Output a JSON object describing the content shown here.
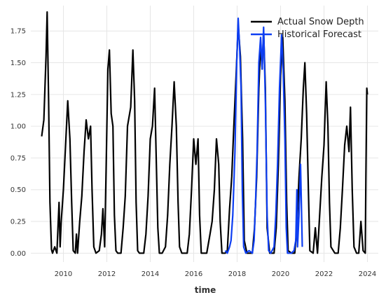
{
  "chart_data": {
    "type": "line",
    "title": "",
    "xlabel": "time",
    "ylabel": "",
    "xlim": [
      2008.5,
      2024.5
    ],
    "ylim": [
      -0.07,
      1.95
    ],
    "x_ticks": [
      2010,
      2012,
      2014,
      2016,
      2018,
      2020,
      2022,
      2024
    ],
    "x_tick_labels": [
      "2010",
      "2012",
      "2014",
      "2016",
      "2018",
      "2020",
      "2022",
      "2024"
    ],
    "y_ticks": [
      0.0,
      0.25,
      0.5,
      0.75,
      1.0,
      1.25,
      1.5,
      1.75
    ],
    "y_tick_labels": [
      "0.00",
      "0.25",
      "0.50",
      "0.75",
      "1.00",
      "1.25",
      "1.50",
      "1.75"
    ],
    "grid": true,
    "legend_position": "top-right",
    "series": [
      {
        "name": "Actual Snow Depth",
        "color": "#000000",
        "points": [
          [
            2009.0,
            0.92
          ],
          [
            2009.1,
            1.05
          ],
          [
            2009.2,
            1.55
          ],
          [
            2009.25,
            1.9
          ],
          [
            2009.32,
            1.2
          ],
          [
            2009.38,
            0.4
          ],
          [
            2009.45,
            0.03
          ],
          [
            2009.5,
            0.0
          ],
          [
            2009.6,
            0.05
          ],
          [
            2009.7,
            0.0
          ],
          [
            2009.8,
            0.4
          ],
          [
            2009.85,
            0.05
          ],
          [
            2009.9,
            0.25
          ],
          [
            2010.0,
            0.5
          ],
          [
            2010.1,
            0.85
          ],
          [
            2010.2,
            1.2
          ],
          [
            2010.3,
            0.9
          ],
          [
            2010.38,
            0.4
          ],
          [
            2010.45,
            0.02
          ],
          [
            2010.55,
            0.0
          ],
          [
            2010.6,
            0.15
          ],
          [
            2010.65,
            0.0
          ],
          [
            2010.75,
            0.25
          ],
          [
            2010.85,
            0.45
          ],
          [
            2010.95,
            0.8
          ],
          [
            2011.05,
            1.05
          ],
          [
            2011.15,
            0.9
          ],
          [
            2011.25,
            1.0
          ],
          [
            2011.32,
            0.5
          ],
          [
            2011.4,
            0.05
          ],
          [
            2011.5,
            0.0
          ],
          [
            2011.65,
            0.02
          ],
          [
            2011.75,
            0.15
          ],
          [
            2011.82,
            0.35
          ],
          [
            2011.9,
            0.05
          ],
          [
            2011.97,
            0.7
          ],
          [
            2012.05,
            1.45
          ],
          [
            2012.12,
            1.6
          ],
          [
            2012.2,
            1.1
          ],
          [
            2012.28,
            1.0
          ],
          [
            2012.35,
            0.3
          ],
          [
            2012.42,
            0.02
          ],
          [
            2012.5,
            0.0
          ],
          [
            2012.65,
            0.0
          ],
          [
            2012.75,
            0.2
          ],
          [
            2012.85,
            0.45
          ],
          [
            2012.95,
            1.0
          ],
          [
            2013.1,
            1.15
          ],
          [
            2013.2,
            1.6
          ],
          [
            2013.28,
            1.2
          ],
          [
            2013.35,
            0.4
          ],
          [
            2013.42,
            0.02
          ],
          [
            2013.5,
            0.0
          ],
          [
            2013.7,
            0.0
          ],
          [
            2013.8,
            0.15
          ],
          [
            2013.9,
            0.45
          ],
          [
            2014.0,
            0.9
          ],
          [
            2014.1,
            1.0
          ],
          [
            2014.2,
            1.3
          ],
          [
            2014.28,
            0.7
          ],
          [
            2014.35,
            0.2
          ],
          [
            2014.42,
            0.0
          ],
          [
            2014.55,
            0.0
          ],
          [
            2014.7,
            0.05
          ],
          [
            2014.8,
            0.3
          ],
          [
            2014.9,
            0.7
          ],
          [
            2015.0,
            1.0
          ],
          [
            2015.1,
            1.35
          ],
          [
            2015.2,
            1.0
          ],
          [
            2015.28,
            0.4
          ],
          [
            2015.35,
            0.05
          ],
          [
            2015.45,
            0.0
          ],
          [
            2015.7,
            0.0
          ],
          [
            2015.8,
            0.15
          ],
          [
            2015.9,
            0.5
          ],
          [
            2016.0,
            0.9
          ],
          [
            2016.1,
            0.7
          ],
          [
            2016.2,
            0.9
          ],
          [
            2016.27,
            0.3
          ],
          [
            2016.35,
            0.0
          ],
          [
            2016.6,
            0.0
          ],
          [
            2016.75,
            0.15
          ],
          [
            2016.85,
            0.25
          ],
          [
            2016.95,
            0.5
          ],
          [
            2017.05,
            0.9
          ],
          [
            2017.15,
            0.7
          ],
          [
            2017.22,
            0.25
          ],
          [
            2017.3,
            0.0
          ],
          [
            2017.45,
            0.0
          ],
          [
            2017.55,
            0.02
          ],
          [
            2017.65,
            0.35
          ],
          [
            2017.75,
            0.6
          ],
          [
            2017.85,
            1.0
          ],
          [
            2017.95,
            1.4
          ],
          [
            2018.05,
            1.8
          ],
          [
            2018.15,
            1.55
          ],
          [
            2018.25,
            0.9
          ],
          [
            2018.33,
            0.1
          ],
          [
            2018.45,
            0.0
          ],
          [
            2018.7,
            0.0
          ],
          [
            2018.8,
            0.2
          ],
          [
            2018.9,
            0.6
          ],
          [
            2019.0,
            1.3
          ],
          [
            2019.08,
            1.65
          ],
          [
            2019.15,
            1.45
          ],
          [
            2019.22,
            1.75
          ],
          [
            2019.3,
            1.3
          ],
          [
            2019.38,
            0.2
          ],
          [
            2019.5,
            0.0
          ],
          [
            2019.7,
            0.0
          ],
          [
            2019.8,
            0.2
          ],
          [
            2019.9,
            0.7
          ],
          [
            2020.0,
            1.4
          ],
          [
            2020.1,
            1.7
          ],
          [
            2020.2,
            1.2
          ],
          [
            2020.28,
            0.4
          ],
          [
            2020.35,
            0.02
          ],
          [
            2020.5,
            0.0
          ],
          [
            2020.65,
            0.0
          ],
          [
            2020.75,
            0.2
          ],
          [
            2020.85,
            0.6
          ],
          [
            2020.95,
            0.9
          ],
          [
            2021.05,
            1.3
          ],
          [
            2021.12,
            1.5
          ],
          [
            2021.2,
            1.1
          ],
          [
            2021.28,
            0.5
          ],
          [
            2021.35,
            0.02
          ],
          [
            2021.5,
            0.0
          ],
          [
            2021.6,
            0.2
          ],
          [
            2021.7,
            0.0
          ],
          [
            2021.8,
            0.3
          ],
          [
            2021.9,
            0.6
          ],
          [
            2022.0,
            0.85
          ],
          [
            2022.1,
            1.35
          ],
          [
            2022.18,
            1.0
          ],
          [
            2022.25,
            0.4
          ],
          [
            2022.32,
            0.05
          ],
          [
            2022.5,
            0.0
          ],
          [
            2022.65,
            0.0
          ],
          [
            2022.75,
            0.2
          ],
          [
            2022.85,
            0.5
          ],
          [
            2022.95,
            0.85
          ],
          [
            2023.05,
            1.0
          ],
          [
            2023.15,
            0.8
          ],
          [
            2023.22,
            1.15
          ],
          [
            2023.3,
            0.5
          ],
          [
            2023.38,
            0.05
          ],
          [
            2023.5,
            0.0
          ],
          [
            2023.6,
            0.0
          ],
          [
            2023.7,
            0.25
          ],
          [
            2023.8,
            0.02
          ],
          [
            2023.9,
            0.0
          ],
          [
            2023.93,
            0.6
          ],
          [
            2023.97,
            1.3
          ],
          [
            2024.0,
            1.25
          ]
        ]
      },
      {
        "name": "Historical Forecast",
        "color": "#0d3ef2",
        "points": [
          [
            2017.45,
            0.02
          ],
          [
            2017.55,
            0.0
          ],
          [
            2017.65,
            0.05
          ],
          [
            2017.72,
            0.1
          ],
          [
            2017.8,
            0.3
          ],
          [
            2017.9,
            0.8
          ],
          [
            2017.98,
            1.5
          ],
          [
            2018.05,
            1.85
          ],
          [
            2018.12,
            1.6
          ],
          [
            2018.18,
            1.3
          ],
          [
            2018.24,
            0.5
          ],
          [
            2018.3,
            0.05
          ],
          [
            2018.4,
            0.0
          ],
          [
            2018.55,
            0.02
          ],
          [
            2018.7,
            0.0
          ],
          [
            2018.78,
            0.1
          ],
          [
            2018.85,
            0.4
          ],
          [
            2018.92,
            0.8
          ],
          [
            2019.0,
            1.5
          ],
          [
            2019.08,
            1.7
          ],
          [
            2019.15,
            1.45
          ],
          [
            2019.22,
            1.78
          ],
          [
            2019.3,
            1.2
          ],
          [
            2019.38,
            0.3
          ],
          [
            2019.45,
            0.02
          ],
          [
            2019.55,
            0.0
          ],
          [
            2019.7,
            0.05
          ],
          [
            2019.78,
            0.3
          ],
          [
            2019.86,
            0.7
          ],
          [
            2019.95,
            1.3
          ],
          [
            2020.05,
            1.72
          ],
          [
            2020.12,
            1.45
          ],
          [
            2020.2,
            0.9
          ],
          [
            2020.26,
            0.2
          ],
          [
            2020.32,
            0.0
          ],
          [
            2020.5,
            0.0
          ],
          [
            2020.62,
            0.02
          ],
          [
            2020.7,
            0.1
          ],
          [
            2020.75,
            0.5
          ],
          [
            2020.78,
            0.05
          ],
          [
            2020.85,
            0.3
          ],
          [
            2020.92,
            0.7
          ],
          [
            2021.0,
            0.05
          ]
        ]
      }
    ]
  }
}
